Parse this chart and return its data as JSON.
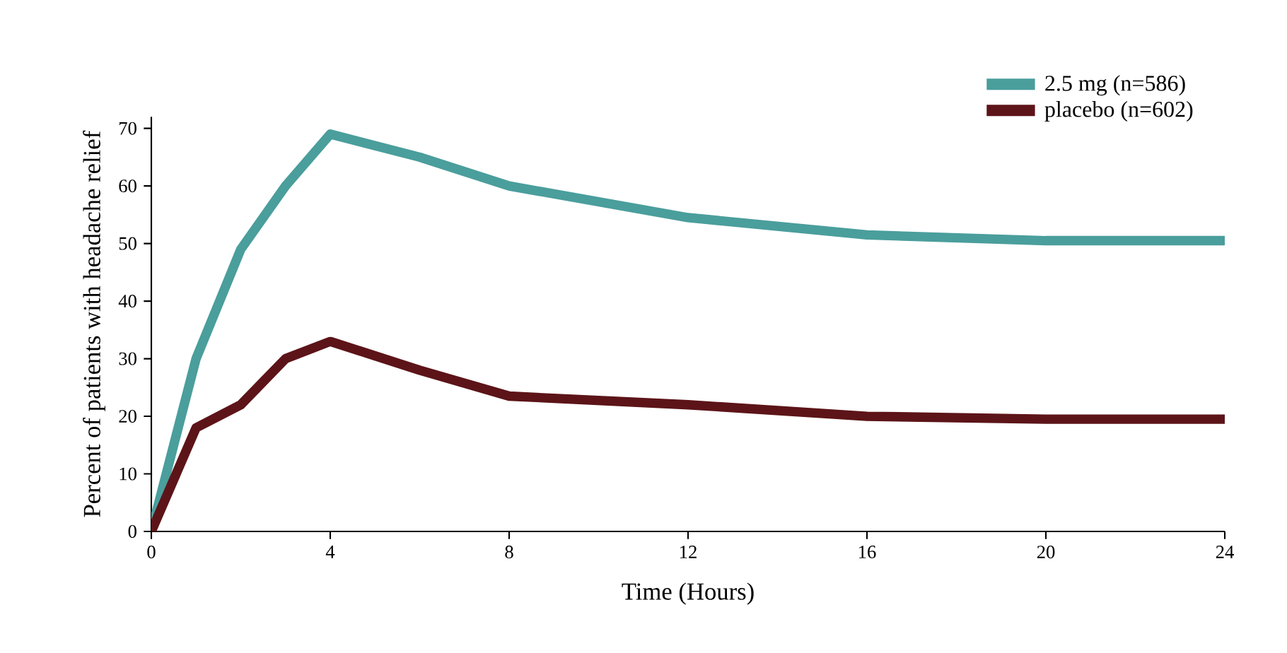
{
  "chart_data": {
    "type": "line",
    "xlabel": "Time (Hours)",
    "ylabel": "Percent of patients with headache relief",
    "x": [
      0,
      1,
      2,
      3,
      4,
      6,
      8,
      12,
      16,
      20,
      24
    ],
    "series": [
      {
        "name": "2.5 mg (n=586)",
        "color": "#4a9e9c",
        "values": [
          0,
          30,
          49,
          60,
          69,
          65,
          60,
          54.5,
          51.5,
          50.5,
          50.5
        ]
      },
      {
        "name": "placebo (n=602)",
        "color": "#5c1418",
        "values": [
          0,
          18,
          22,
          30,
          33,
          28,
          23.5,
          22,
          20,
          19.5,
          19.5
        ]
      }
    ],
    "xlim": [
      0,
      24
    ],
    "ylim": [
      0,
      72
    ],
    "xticks": [
      0,
      4,
      8,
      12,
      16,
      20,
      24
    ],
    "yticks": [
      0,
      10,
      20,
      30,
      40,
      50,
      60,
      70
    ],
    "legend": "top right",
    "marker": "none",
    "line_style": "solid",
    "grid": false
  }
}
